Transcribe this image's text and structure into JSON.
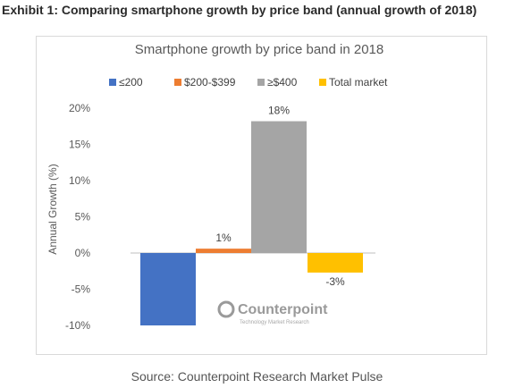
{
  "exhibit_title": "Exhibit 1: Comparing smartphone growth by price band (annual growth of 2018)",
  "source": "Source: Counterpoint Research Market Pulse",
  "watermark": {
    "name": "Counterpoint",
    "tagline": "Technology Market Research"
  },
  "colors": {
    "le200": "#4472C4",
    "mid": "#ED7D31",
    "ge400": "#A5A5A5",
    "total": "#FFC000"
  },
  "chart_data": {
    "type": "bar",
    "title": "Smartphone growth by price band in 2018",
    "ylabel": "Annual Growth (%)",
    "xlabel": "",
    "ylim": [
      -10,
      20
    ],
    "yticks": [
      "20%",
      "15%",
      "10%",
      "5%",
      "0%",
      "-5%",
      "-10%"
    ],
    "grid": false,
    "legend_position": "top",
    "series": [
      {
        "name": "≤200",
        "value": -10,
        "label": "",
        "color": "#4472C4"
      },
      {
        "name": "$200-$399",
        "value": 0.6,
        "label": "1%",
        "color": "#ED7D31"
      },
      {
        "name": "≥$400",
        "value": 18.2,
        "label": "18%",
        "color": "#A5A5A5"
      },
      {
        "name": "Total market",
        "value": -2.7,
        "label": "-3%",
        "color": "#FFC000"
      }
    ]
  }
}
